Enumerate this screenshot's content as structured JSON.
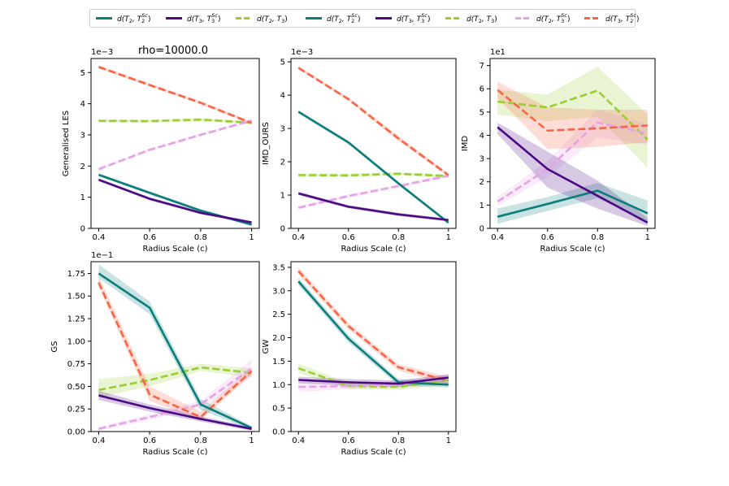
{
  "figure_title": "rho=10000.0",
  "legend": [
    {
      "label": "d(T2, T2^Sc)",
      "math": [
        "d(T",
        "2",
        ", T",
        "2",
        "Sc",
        ")"
      ],
      "color": "#0b7d7b",
      "dash": "solid",
      "width": 3
    },
    {
      "label": "d(T3, T3^Sc)",
      "math": [
        "d(T",
        "3",
        ", T",
        "3",
        "Sc",
        ")"
      ],
      "color": "#4b0a82",
      "dash": "solid",
      "width": 3
    },
    {
      "label": "d(T2, T3)",
      "math": [
        "d(T",
        "2",
        ", T",
        "3",
        "",
        ")"
      ],
      "color": "#9acd32",
      "dash": "dashed",
      "width": 3
    },
    {
      "label": "d(T2, T2^Sc)",
      "math": [
        "d(T",
        "2",
        ", T",
        "2",
        "Sc",
        ")"
      ],
      "color": "#0b7d7b",
      "dash": "solid",
      "width": 3
    },
    {
      "label": "d(T3, T3^Sc)",
      "math": [
        "d(T",
        "3",
        ", T",
        "3",
        "Sc",
        ")"
      ],
      "color": "#4b0a82",
      "dash": "solid",
      "width": 3
    },
    {
      "label": "d(T2, T3)",
      "math": [
        "d(T",
        "2",
        ", T",
        "3",
        "",
        ")"
      ],
      "color": "#9acd32",
      "dash": "dashed",
      "width": 3
    },
    {
      "label": "d(T2, T3^Sc)",
      "math": [
        "d(T",
        "2",
        ", T",
        "3",
        "Sc",
        ")"
      ],
      "color": "#e4a3e4",
      "dash": "dashed",
      "width": 3
    },
    {
      "label": "d(T3, T2^Sc)",
      "math": [
        "d(T",
        "3",
        ", T",
        "2",
        "Sc",
        ")"
      ],
      "color": "#f86446",
      "dash": "dashed",
      "width": 3
    }
  ],
  "chart_data": [
    {
      "type": "line",
      "title": "",
      "xlabel": "Radius Scale (c)",
      "ylabel": "Generalised LES",
      "offset_label": "1e−3",
      "x": [
        0.4,
        0.6,
        0.8,
        1
      ],
      "xticks": [
        "0.4",
        "0.6",
        "0.8",
        "1"
      ],
      "yticks": [
        0,
        1,
        2,
        3,
        4,
        5
      ],
      "ylim": [
        -0.0,
        5.45
      ],
      "series": [
        {
          "name": "d(T2, T3)",
          "color": "#9acd32",
          "dash": "dashed",
          "values": [
            3.45,
            3.44,
            3.49,
            3.39
          ],
          "band": [
            [
              3.4,
              3.5
            ],
            [
              3.39,
              3.49
            ],
            [
              3.44,
              3.54
            ],
            [
              3.34,
              3.44
            ]
          ]
        },
        {
          "name": "d(T2, T3^Sc)",
          "color": "#e4a3e4",
          "dash": "dashed",
          "values": [
            1.9,
            2.52,
            3.0,
            3.46
          ],
          "band": [
            [
              1.85,
              1.95
            ],
            [
              2.47,
              2.57
            ],
            [
              2.95,
              3.05
            ],
            [
              3.41,
              3.51
            ]
          ]
        },
        {
          "name": "d(T3, T2^Sc)",
          "color": "#f86446",
          "dash": "dashed",
          "values": [
            5.18,
            4.6,
            4.03,
            3.38
          ],
          "band": [
            [
              5.13,
              5.23
            ],
            [
              4.55,
              4.65
            ],
            [
              3.98,
              4.08
            ],
            [
              3.33,
              3.43
            ]
          ]
        },
        {
          "name": "d(T2, T2^Sc)",
          "color": "#0b7d7b",
          "dash": "solid",
          "values": [
            1.72,
            1.14,
            0.57,
            0.12
          ],
          "band": [
            [
              1.67,
              1.77
            ],
            [
              1.09,
              1.19
            ],
            [
              0.52,
              0.62
            ],
            [
              0.08,
              0.16
            ]
          ]
        },
        {
          "name": "d(T3, T3^Sc)",
          "color": "#4b0a82",
          "dash": "solid",
          "values": [
            1.56,
            0.95,
            0.5,
            0.19
          ],
          "band": [
            [
              1.51,
              1.61
            ],
            [
              0.9,
              1.0
            ],
            [
              0.45,
              0.55
            ],
            [
              0.15,
              0.23
            ]
          ]
        }
      ]
    },
    {
      "type": "line",
      "title": "",
      "xlabel": "Radius Scale (c)",
      "ylabel": "IMD_OURS",
      "offset_label": "1e−3",
      "x": [
        0.4,
        0.6,
        0.8,
        1
      ],
      "xticks": [
        "0.4",
        "0.6",
        "0.8",
        "1"
      ],
      "yticks": [
        0,
        1,
        2,
        3,
        4,
        5
      ],
      "ylim": [
        -0.0,
        5.1
      ],
      "series": [
        {
          "name": "d(T2, T3)",
          "color": "#9acd32",
          "dash": "dashed",
          "values": [
            1.6,
            1.59,
            1.64,
            1.57
          ],
          "band": [
            [
              1.55,
              1.65
            ],
            [
              1.54,
              1.64
            ],
            [
              1.59,
              1.69
            ],
            [
              1.52,
              1.62
            ]
          ]
        },
        {
          "name": "d(T2, T3^Sc)",
          "color": "#e4a3e4",
          "dash": "dashed",
          "values": [
            0.62,
            0.97,
            1.27,
            1.58
          ],
          "band": [
            [
              0.57,
              0.67
            ],
            [
              0.92,
              1.02
            ],
            [
              1.22,
              1.32
            ],
            [
              1.53,
              1.63
            ]
          ]
        },
        {
          "name": "d(T3, T2^Sc)",
          "color": "#f86446",
          "dash": "dashed",
          "values": [
            4.82,
            3.88,
            2.7,
            1.6
          ],
          "band": [
            [
              4.77,
              4.87
            ],
            [
              3.83,
              3.93
            ],
            [
              2.62,
              2.78
            ],
            [
              1.55,
              1.65
            ]
          ]
        },
        {
          "name": "d(T2, T2^Sc)",
          "color": "#0b7d7b",
          "dash": "solid",
          "values": [
            3.5,
            2.58,
            1.35,
            0.17
          ],
          "band": [
            [
              3.45,
              3.55
            ],
            [
              2.53,
              2.63
            ],
            [
              1.3,
              1.4
            ],
            [
              0.13,
              0.21
            ]
          ]
        },
        {
          "name": "d(T3, T3^Sc)",
          "color": "#4b0a82",
          "dash": "solid",
          "values": [
            1.05,
            0.65,
            0.42,
            0.25
          ],
          "band": [
            [
              1.0,
              1.1
            ],
            [
              0.6,
              0.7
            ],
            [
              0.37,
              0.47
            ],
            [
              0.21,
              0.29
            ]
          ]
        }
      ]
    },
    {
      "type": "line",
      "title": "",
      "xlabel": "Radius Scale (c)",
      "ylabel": "IMD",
      "offset_label": "1e1",
      "x": [
        0.4,
        0.6,
        0.8,
        1
      ],
      "xticks": [
        "0.4",
        "0.6",
        "0.8",
        "1"
      ],
      "yticks": [
        0,
        1,
        2,
        3,
        4,
        5,
        6,
        7
      ],
      "ylim": [
        -0.0,
        7.3
      ],
      "series": [
        {
          "name": "d(T2, T3)",
          "color": "#9acd32",
          "dash": "dashed",
          "values": [
            5.45,
            5.2,
            5.92,
            3.82
          ],
          "band": [
            [
              4.9,
              5.95
            ],
            [
              4.6,
              5.75
            ],
            [
              4.8,
              6.95
            ],
            [
              2.6,
              4.9
            ]
          ]
        },
        {
          "name": "d(T2, T3^Sc)",
          "color": "#e4a3e4",
          "dash": "dashed",
          "values": [
            1.15,
            2.55,
            4.55,
            4.08
          ],
          "band": [
            [
              0.95,
              1.35
            ],
            [
              2.2,
              2.9
            ],
            [
              3.9,
              5.1
            ],
            [
              3.6,
              4.5
            ]
          ]
        },
        {
          "name": "d(T3, T2^Sc)",
          "color": "#f86446",
          "dash": "dashed",
          "values": [
            5.95,
            4.2,
            4.3,
            4.42
          ],
          "band": [
            [
              5.6,
              6.3
            ],
            [
              3.4,
              5.2
            ],
            [
              3.5,
              5.1
            ],
            [
              3.7,
              5.1
            ]
          ]
        },
        {
          "name": "d(T2, T2^Sc)",
          "color": "#0b7d7b",
          "dash": "solid",
          "values": [
            0.5,
            1.05,
            1.62,
            0.65
          ],
          "band": [
            [
              0.2,
              0.85
            ],
            [
              0.75,
              1.35
            ],
            [
              1.3,
              1.95
            ],
            [
              0.25,
              1.2
            ]
          ]
        },
        {
          "name": "d(T3, T3^Sc)",
          "color": "#4b0a82",
          "dash": "solid",
          "values": [
            4.35,
            2.55,
            1.4,
            0.25
          ],
          "band": [
            [
              4.05,
              4.55
            ],
            [
              1.75,
              3.3
            ],
            [
              0.85,
              2.05
            ],
            [
              0.1,
              0.45
            ]
          ]
        }
      ]
    },
    {
      "type": "line",
      "title": "",
      "xlabel": "Radius Scale (c)",
      "ylabel": "GS",
      "offset_label": "1e−1",
      "x": [
        0.4,
        0.6,
        0.8,
        1
      ],
      "xticks": [
        "0.4",
        "0.6",
        "0.8",
        "1"
      ],
      "yticks": [
        "0.00",
        "0.25",
        "0.50",
        "0.75",
        "1.00",
        "1.25",
        "1.50",
        "1.75"
      ],
      "ytickvals": [
        0,
        0.25,
        0.5,
        0.75,
        1.0,
        1.25,
        1.5,
        1.75
      ],
      "ylim": [
        -0.0,
        1.88
      ],
      "series": [
        {
          "name": "d(T2, T3)",
          "color": "#9acd32",
          "dash": "dashed",
          "values": [
            0.46,
            0.57,
            0.71,
            0.65
          ],
          "band": [
            [
              0.38,
              0.58
            ],
            [
              0.5,
              0.64
            ],
            [
              0.67,
              0.75
            ],
            [
              0.6,
              0.7
            ]
          ]
        },
        {
          "name": "d(T2, T3^Sc)",
          "color": "#e4a3e4",
          "dash": "dashed",
          "values": [
            0.03,
            0.16,
            0.3,
            0.7
          ],
          "band": [
            [
              0.01,
              0.05
            ],
            [
              0.13,
              0.19
            ],
            [
              0.26,
              0.34
            ],
            [
              0.6,
              0.8
            ]
          ]
        },
        {
          "name": "d(T3, T2^Sc)",
          "color": "#f86446",
          "dash": "dashed",
          "values": [
            1.65,
            0.41,
            0.16,
            0.67
          ],
          "band": [
            [
              1.6,
              1.72
            ],
            [
              0.34,
              0.5
            ],
            [
              0.12,
              0.22
            ],
            [
              0.63,
              0.71
            ]
          ]
        },
        {
          "name": "d(T2, T2^Sc)",
          "color": "#0b7d7b",
          "dash": "solid",
          "values": [
            1.75,
            1.37,
            0.3,
            0.04
          ],
          "band": [
            [
              1.7,
              1.85
            ],
            [
              1.3,
              1.44
            ],
            [
              0.24,
              0.36
            ],
            [
              0.02,
              0.06
            ]
          ]
        },
        {
          "name": "d(T3, T3^Sc)",
          "color": "#4b0a82",
          "dash": "solid",
          "values": [
            0.4,
            0.26,
            0.14,
            0.03
          ],
          "band": [
            [
              0.35,
              0.45
            ],
            [
              0.22,
              0.3
            ],
            [
              0.11,
              0.17
            ],
            [
              0.01,
              0.05
            ]
          ]
        }
      ]
    },
    {
      "type": "line",
      "title": "",
      "xlabel": "Radius Scale (c)",
      "ylabel": "GW",
      "offset_label": "",
      "x": [
        0.4,
        0.6,
        0.8,
        1
      ],
      "xticks": [
        "0.4",
        "0.6",
        "0.8",
        "1"
      ],
      "yticks": [
        "0.0",
        "0.5",
        "1.0",
        "1.5",
        "2.0",
        "2.5",
        "3.0",
        "3.5"
      ],
      "ytickvals": [
        0,
        0.5,
        1.0,
        1.5,
        2.0,
        2.5,
        3.0,
        3.5
      ],
      "ylim": [
        -0.0,
        3.62
      ],
      "series": [
        {
          "name": "d(T2, T3)",
          "color": "#9acd32",
          "dash": "dashed",
          "values": [
            1.35,
            0.97,
            0.95,
            1.1
          ],
          "band": [
            [
              1.25,
              1.45
            ],
            [
              0.91,
              1.03
            ],
            [
              0.89,
              1.01
            ],
            [
              1.0,
              1.2
            ]
          ]
        },
        {
          "name": "d(T2, T3^Sc)",
          "color": "#e4a3e4",
          "dash": "dashed",
          "values": [
            0.95,
            0.97,
            1.0,
            1.13
          ],
          "band": [
            [
              0.85,
              1.05
            ],
            [
              0.9,
              1.04
            ],
            [
              0.93,
              1.07
            ],
            [
              1.03,
              1.23
            ]
          ]
        },
        {
          "name": "d(T3, T2^Sc)",
          "color": "#f86446",
          "dash": "dashed",
          "values": [
            3.42,
            2.25,
            1.37,
            1.08
          ],
          "band": [
            [
              3.35,
              3.5
            ],
            [
              2.18,
              2.32
            ],
            [
              1.3,
              1.44
            ],
            [
              1.0,
              1.16
            ]
          ]
        },
        {
          "name": "d(T2, T2^Sc)",
          "color": "#0b7d7b",
          "dash": "solid",
          "values": [
            3.2,
            1.98,
            1.05,
            1.0
          ],
          "band": [
            [
              3.12,
              3.28
            ],
            [
              1.9,
              2.06
            ],
            [
              0.98,
              1.12
            ],
            [
              0.94,
              1.06
            ]
          ]
        },
        {
          "name": "d(T3, T3^Sc)",
          "color": "#4b0a82",
          "dash": "solid",
          "values": [
            1.1,
            1.05,
            1.02,
            1.15
          ],
          "band": [
            [
              1.03,
              1.17
            ],
            [
              0.98,
              1.12
            ],
            [
              0.95,
              1.09
            ],
            [
              1.08,
              1.22
            ]
          ]
        }
      ]
    }
  ]
}
